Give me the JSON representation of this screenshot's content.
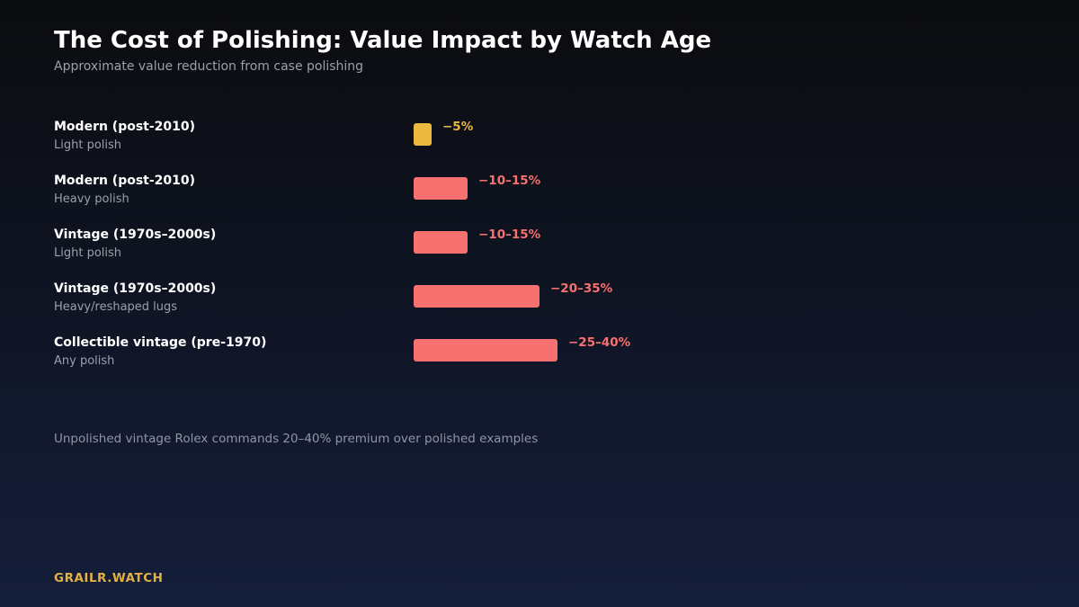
{
  "title": "The Cost of Polishing: Value Impact by Watch Age",
  "subtitle": "Approximate value reduction from case polishing",
  "footnote": "Unpolished vintage Rolex commands 20–40% premium over polished examples",
  "brand": "GRAILR.WATCH",
  "colors": {
    "low_impact": "#ebb93e",
    "high_impact": "#f87171",
    "brand": "#e2b145"
  },
  "chart_data": {
    "type": "bar",
    "orientation": "horizontal",
    "unit": "% value reduction",
    "grid": false,
    "legend": "none",
    "items": [
      {
        "category": "Modern (post-2010)",
        "detail": "Light polish",
        "value_low": 5,
        "value_high": 5,
        "label": "−5%",
        "color": "#ebb93e"
      },
      {
        "category": "Modern (post-2010)",
        "detail": "Heavy polish",
        "value_low": 10,
        "value_high": 15,
        "label": "−10–15%",
        "color": "#f87171"
      },
      {
        "category": "Vintage (1970s–2000s)",
        "detail": "Light polish",
        "value_low": 10,
        "value_high": 15,
        "label": "−10–15%",
        "color": "#f87171"
      },
      {
        "category": "Vintage (1970s–2000s)",
        "detail": "Heavy/reshaped lugs",
        "value_low": 20,
        "value_high": 35,
        "label": "−20–35%",
        "color": "#f87171"
      },
      {
        "category": "Collectible vintage (pre-1970)",
        "detail": "Any polish",
        "value_low": 25,
        "value_high": 40,
        "label": "−25–40%",
        "color": "#f87171"
      }
    ]
  }
}
